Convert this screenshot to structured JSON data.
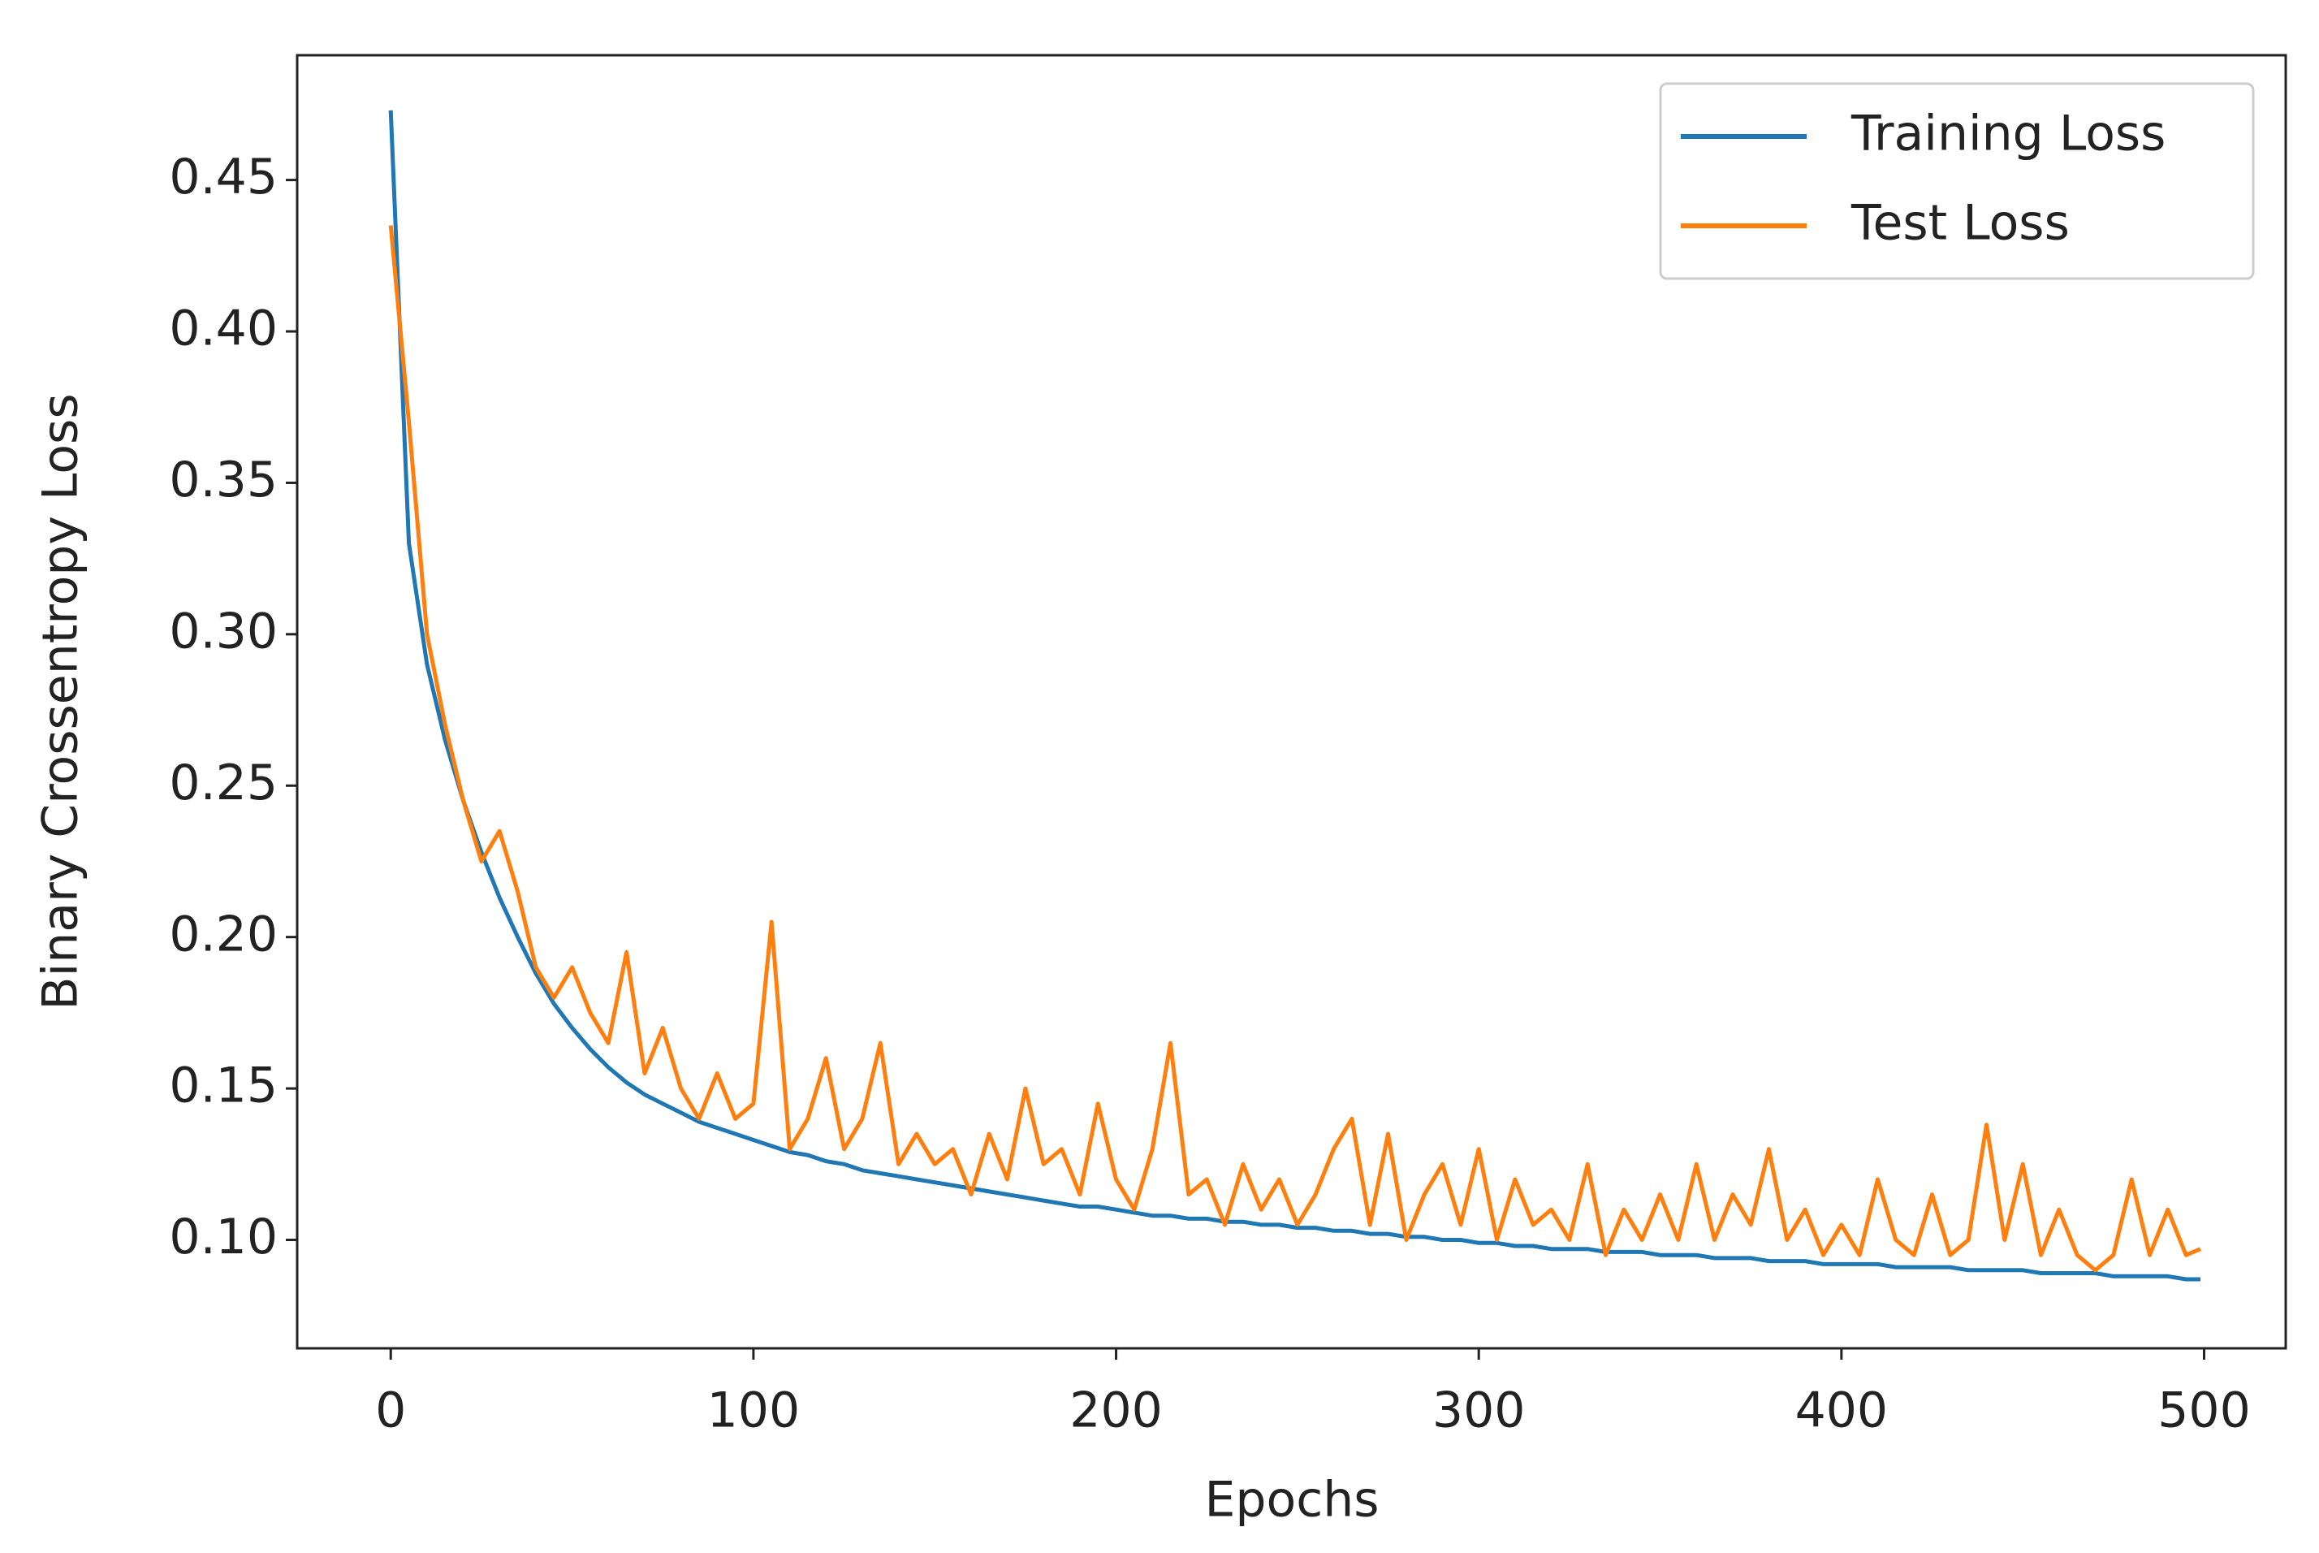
{
  "chart_data": {
    "type": "line",
    "xlabel": "Epochs",
    "ylabel": "Binary Crossentropy Loss",
    "x": [
      0,
      5,
      10,
      15,
      20,
      25,
      30,
      35,
      40,
      45,
      50,
      55,
      60,
      65,
      70,
      75,
      80,
      85,
      90,
      95,
      100,
      105,
      110,
      115,
      120,
      125,
      130,
      135,
      140,
      145,
      150,
      155,
      160,
      165,
      170,
      175,
      180,
      185,
      190,
      195,
      200,
      205,
      210,
      215,
      220,
      225,
      230,
      235,
      240,
      245,
      250,
      255,
      260,
      265,
      270,
      275,
      280,
      285,
      290,
      295,
      300,
      305,
      310,
      315,
      320,
      325,
      330,
      335,
      340,
      345,
      350,
      355,
      360,
      365,
      370,
      375,
      380,
      385,
      390,
      395,
      400,
      405,
      410,
      415,
      420,
      425,
      430,
      435,
      440,
      445,
      450,
      455,
      460,
      465,
      470,
      475,
      480,
      485,
      490,
      495,
      499
    ],
    "series": [
      {
        "name": "Training Loss",
        "color": "#1f77b4",
        "values": [
          0.473,
          0.33,
          0.29,
          0.265,
          0.245,
          0.228,
          0.213,
          0.2,
          0.188,
          0.178,
          0.17,
          0.163,
          0.157,
          0.152,
          0.148,
          0.145,
          0.142,
          0.139,
          0.137,
          0.135,
          0.133,
          0.131,
          0.129,
          0.128,
          0.126,
          0.125,
          0.123,
          0.122,
          0.121,
          0.12,
          0.119,
          0.118,
          0.117,
          0.116,
          0.115,
          0.114,
          0.113,
          0.112,
          0.111,
          0.111,
          0.11,
          0.109,
          0.108,
          0.108,
          0.107,
          0.107,
          0.106,
          0.106,
          0.105,
          0.105,
          0.104,
          0.104,
          0.103,
          0.103,
          0.102,
          0.102,
          0.101,
          0.101,
          0.1,
          0.1,
          0.099,
          0.099,
          0.098,
          0.098,
          0.097,
          0.097,
          0.097,
          0.096,
          0.096,
          0.096,
          0.095,
          0.095,
          0.095,
          0.094,
          0.094,
          0.094,
          0.093,
          0.093,
          0.093,
          0.092,
          0.092,
          0.092,
          0.092,
          0.091,
          0.091,
          0.091,
          0.091,
          0.09,
          0.09,
          0.09,
          0.09,
          0.089,
          0.089,
          0.089,
          0.089,
          0.088,
          0.088,
          0.088,
          0.088,
          0.087,
          0.087
        ]
      },
      {
        "name": "Test Loss",
        "color": "#ff7f0e",
        "values": [
          0.435,
          0.37,
          0.3,
          0.27,
          0.245,
          0.225,
          0.235,
          0.215,
          0.19,
          0.18,
          0.19,
          0.175,
          0.165,
          0.195,
          0.155,
          0.17,
          0.15,
          0.14,
          0.155,
          0.14,
          0.145,
          0.205,
          0.13,
          0.14,
          0.16,
          0.13,
          0.14,
          0.165,
          0.125,
          0.135,
          0.125,
          0.13,
          0.115,
          0.135,
          0.12,
          0.15,
          0.125,
          0.13,
          0.115,
          0.145,
          0.12,
          0.11,
          0.13,
          0.165,
          0.115,
          0.12,
          0.105,
          0.125,
          0.11,
          0.12,
          0.105,
          0.115,
          0.13,
          0.14,
          0.105,
          0.135,
          0.1,
          0.115,
          0.125,
          0.105,
          0.13,
          0.1,
          0.12,
          0.105,
          0.11,
          0.1,
          0.125,
          0.095,
          0.11,
          0.1,
          0.115,
          0.1,
          0.125,
          0.1,
          0.115,
          0.105,
          0.13,
          0.1,
          0.11,
          0.095,
          0.105,
          0.095,
          0.12,
          0.1,
          0.095,
          0.115,
          0.095,
          0.1,
          0.138,
          0.1,
          0.125,
          0.095,
          0.11,
          0.095,
          0.09,
          0.095,
          0.12,
          0.095,
          0.11,
          0.095,
          0.097
        ]
      }
    ],
    "xlim": [
      -25.8,
      522.5
    ],
    "xticks": [
      0,
      100,
      200,
      300,
      400,
      500
    ],
    "ylim": [
      0.0642,
      0.4912
    ],
    "yticks": [
      {
        "value": 0.1,
        "label": "0.10"
      },
      {
        "value": 0.15,
        "label": "0.15"
      },
      {
        "value": 0.2,
        "label": "0.20"
      },
      {
        "value": 0.25,
        "label": "0.25"
      },
      {
        "value": 0.3,
        "label": "0.30"
      },
      {
        "value": 0.35,
        "label": "0.35"
      },
      {
        "value": 0.4,
        "label": "0.40"
      },
      {
        "value": 0.45,
        "label": "0.45"
      }
    ],
    "legend": "upper right"
  }
}
